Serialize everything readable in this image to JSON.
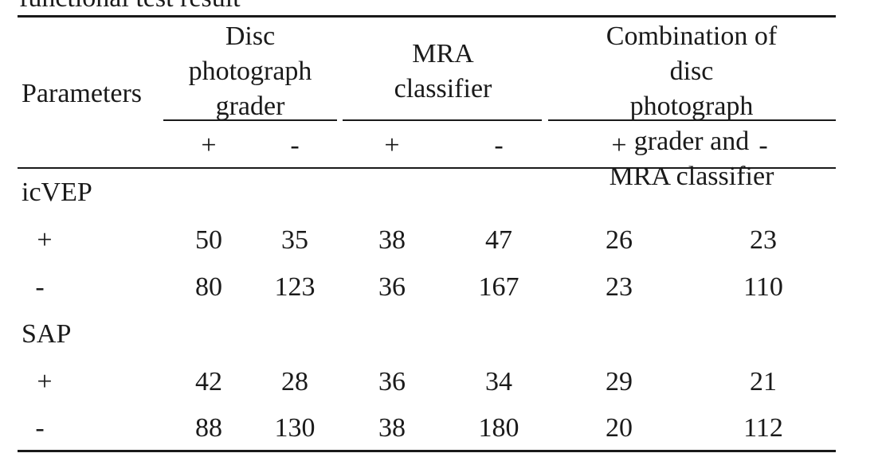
{
  "caption": "functional test result",
  "table": {
    "row_header_label": "Parameters",
    "column_groups": [
      {
        "label": "Disc\nphotograph\ngrader",
        "signs": [
          "+",
          "-"
        ]
      },
      {
        "label": "MRA\nclassifier",
        "signs": [
          "+",
          "-"
        ]
      },
      {
        "label": "Combination of disc\nphotograph grader and\nMRA classifier",
        "signs": [
          "+",
          "-"
        ]
      }
    ],
    "sections": [
      {
        "name": "icVEP",
        "rows": [
          {
            "sign": "+",
            "values": [
              "50",
              "35",
              "38",
              "47",
              "26",
              "23"
            ]
          },
          {
            "sign": "-",
            "values": [
              "80",
              "123",
              "36",
              "167",
              "23",
              "110"
            ]
          }
        ]
      },
      {
        "name": "SAP",
        "rows": [
          {
            "sign": "+",
            "values": [
              "42",
              "28",
              "36",
              "34",
              "29",
              "21"
            ]
          },
          {
            "sign": "-",
            "values": [
              "88",
              "130",
              "38",
              "180",
              "20",
              "112"
            ]
          }
        ]
      }
    ]
  }
}
